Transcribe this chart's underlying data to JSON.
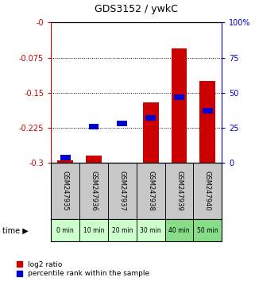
{
  "title": "GDS3152 / ywkC",
  "samples": [
    "GSM247935",
    "GSM247936",
    "GSM247937",
    "GSM247938",
    "GSM247939",
    "GSM247940"
  ],
  "time_labels": [
    "0 min",
    "10 min",
    "20 min",
    "30 min",
    "40 min",
    "50 min"
  ],
  "log2_ratio": [
    -0.295,
    -0.285,
    -0.3,
    -0.17,
    -0.055,
    -0.125
  ],
  "percentile_rank": [
    4,
    26,
    28,
    32,
    47,
    37
  ],
  "ylim_left": [
    -0.3,
    0.0
  ],
  "ylim_right": [
    0,
    100
  ],
  "yticks_left": [
    -0.3,
    -0.225,
    -0.15,
    -0.075,
    0.0
  ],
  "ytick_labels_left": [
    "-0.3",
    "-0.225",
    "-0.15",
    "-0.075",
    "-0"
  ],
  "yticks_right": [
    0,
    25,
    50,
    75,
    100
  ],
  "ytick_labels_right": [
    "0",
    "25",
    "50",
    "75",
    "100%"
  ],
  "bar_color": "#cc0000",
  "percentile_color": "#0000cc",
  "bg_plot": "#ffffff",
  "bg_sample": "#c8c8c8",
  "bg_time_light": "#ccffcc",
  "bg_time_dark": "#88dd88",
  "left_axis_color": "#cc0000",
  "right_axis_color": "#0000cc",
  "bar_width": 0.55,
  "time_colors": [
    "#ccffcc",
    "#ccffcc",
    "#ccffcc",
    "#ccffcc",
    "#88dd88",
    "#88dd88"
  ]
}
